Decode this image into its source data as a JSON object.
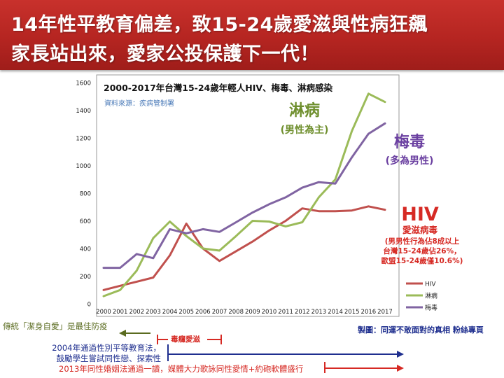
{
  "headline": {
    "line1": "14年性平教育偏差，致15-24歲愛滋與性病狂飆",
    "line2": "家長站出來，愛家公投保護下一代！"
  },
  "chart_data": {
    "type": "line",
    "title": "2000-2017年台灣15-24歲年輕人HIV、梅毒、淋病感染",
    "source": "資料來源：疾病管制署",
    "x": [
      2000,
      2001,
      2002,
      2003,
      2004,
      2005,
      2006,
      2007,
      2008,
      2009,
      2010,
      2011,
      2012,
      2013,
      2014,
      2015,
      2016,
      2017
    ],
    "ylim": [
      0,
      1600
    ],
    "yticks": [
      0,
      200,
      400,
      600,
      800,
      1000,
      1200,
      1400,
      1600
    ],
    "grid": false,
    "legend": "bottom-right",
    "series": [
      {
        "name": "HIV",
        "color": "#c0504d",
        "values": [
          100,
          130,
          160,
          190,
          350,
          580,
          400,
          310,
          380,
          450,
          530,
          600,
          690,
          670,
          670,
          675,
          705,
          680
        ]
      },
      {
        "name": "淋病",
        "color": "#9bbb59",
        "values": [
          55,
          100,
          240,
          475,
          595,
          490,
          400,
          385,
          490,
          600,
          595,
          560,
          590,
          770,
          900,
          1250,
          1520,
          1460
        ]
      },
      {
        "name": "梅毒",
        "color": "#8064a2",
        "values": [
          260,
          260,
          360,
          330,
          540,
          510,
          540,
          520,
          590,
          660,
          720,
          770,
          840,
          880,
          870,
          1060,
          1230,
          1305
        ]
      }
    ],
    "annotations": {
      "gonorrhea": {
        "title": "淋病",
        "sub": "(男性為主)",
        "color": "#6f8f2e"
      },
      "syphilis": {
        "title": "梅毒",
        "sub": "(多為男性)",
        "color": "#6a3fa0"
      },
      "hiv": {
        "title": "HIV",
        "sub": "愛滋病毒",
        "detail": [
          "(男男性行為佔8成以上",
          "台灣15-24歲佔26%，",
          "歐盟15-24歲僅10.6%)"
        ],
        "color": "#d62a24"
      }
    }
  },
  "timeline": {
    "credit": "製圖：同運不敢面對的真相 粉絲專頁",
    "chastity": "傳統「潔身自愛」是最佳防疫",
    "drugs": "毒癮愛滋",
    "gender_law": [
      "2004年通過性別平等教育法，",
      "鼓勵學生嘗試同性戀、探索性"
    ],
    "marriage_law": "2013年同性婚姻法通過一讀，媒體大力歌詠同性愛情+約砲軟體盛行",
    "colors": {
      "olive": "#5a6b1f",
      "red": "#d62a24",
      "blue": "#1f2f8f"
    }
  }
}
